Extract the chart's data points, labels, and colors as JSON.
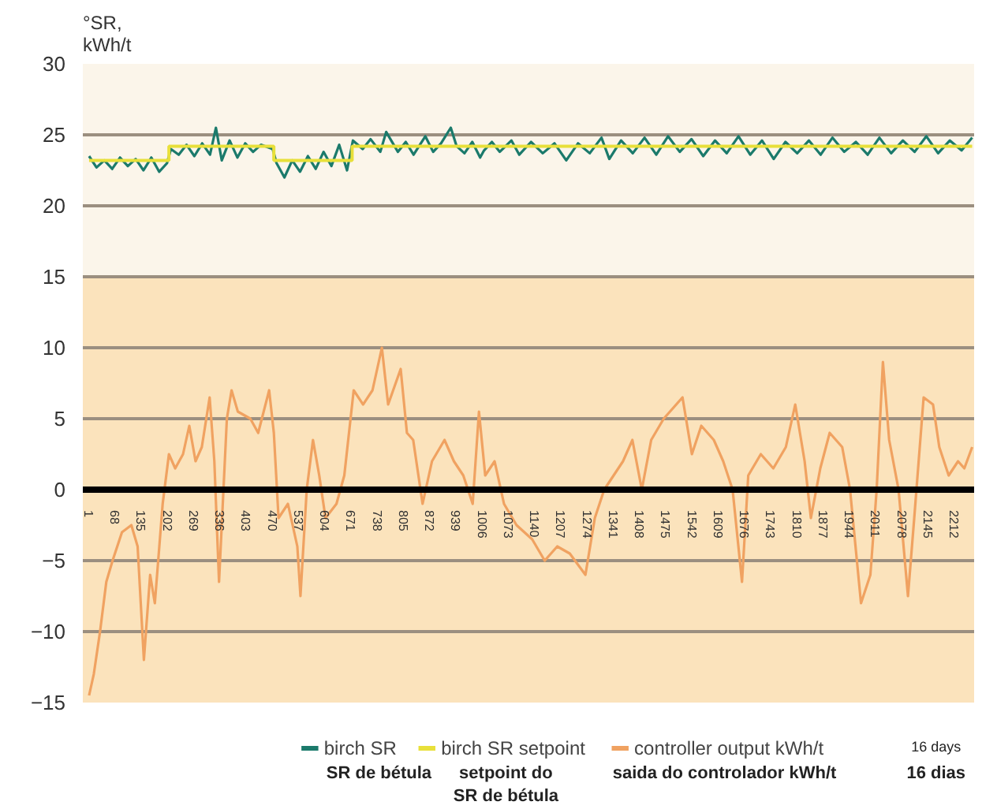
{
  "chart_data": {
    "type": "line",
    "ylabel": "°SR,\nkWh/t",
    "xlim": [
      -15,
      2262
    ],
    "ylim": [
      -15,
      30
    ],
    "xticks": [
      1,
      68,
      135,
      202,
      269,
      336,
      403,
      470,
      537,
      604,
      671,
      738,
      805,
      872,
      939,
      1006,
      1073,
      1140,
      1207,
      1274,
      1341,
      1408,
      1475,
      1542,
      1609,
      1676,
      1743,
      1810,
      1877,
      1944,
      2011,
      2078,
      2145,
      2212
    ],
    "yticks": [
      -15,
      -10,
      -5,
      0,
      5,
      10,
      15,
      20,
      25,
      30
    ],
    "grid": "y",
    "legend": "bottom",
    "line_style": "solid",
    "bands": [
      {
        "axis": "y",
        "from": 15,
        "to": 30,
        "color": "#fbf5ea"
      },
      {
        "axis": "y",
        "from": -15,
        "to": 15,
        "color": "#fbe3bc"
      }
    ],
    "series": [
      {
        "name": "birch SR",
        "color": "#1b7a6b",
        "x": [
          1,
          20,
          40,
          60,
          80,
          100,
          120,
          140,
          160,
          180,
          200,
          210,
          230,
          250,
          270,
          290,
          310,
          325,
          340,
          360,
          380,
          400,
          420,
          440,
          470,
          480,
          500,
          520,
          540,
          560,
          580,
          600,
          620,
          640,
          660,
          675,
          700,
          720,
          745,
          760,
          790,
          810,
          830,
          860,
          880,
          900,
          925,
          940,
          960,
          980,
          1000,
          1010,
          1030,
          1050,
          1080,
          1100,
          1130,
          1160,
          1190,
          1220,
          1250,
          1280,
          1310,
          1330,
          1360,
          1390,
          1420,
          1450,
          1480,
          1510,
          1540,
          1570,
          1600,
          1630,
          1660,
          1690,
          1720,
          1750,
          1780,
          1810,
          1840,
          1870,
          1900,
          1930,
          1960,
          1990,
          2020,
          2050,
          2080,
          2110,
          2140,
          2170,
          2200,
          2230,
          2257
        ],
        "values": [
          23.5,
          22.7,
          23.2,
          22.6,
          23.4,
          22.8,
          23.3,
          22.5,
          23.4,
          22.4,
          23.0,
          24.0,
          23.6,
          24.3,
          23.5,
          24.4,
          23.6,
          25.5,
          23.2,
          24.6,
          23.4,
          24.4,
          23.8,
          24.3,
          24.0,
          23.0,
          22.0,
          23.2,
          22.4,
          23.5,
          22.6,
          23.8,
          22.8,
          24.3,
          22.5,
          24.6,
          24.0,
          24.7,
          23.8,
          25.2,
          23.8,
          24.5,
          23.6,
          24.9,
          23.8,
          24.4,
          25.5,
          24.2,
          23.7,
          24.5,
          23.4,
          23.9,
          24.5,
          23.8,
          24.6,
          23.6,
          24.5,
          23.7,
          24.4,
          23.2,
          24.4,
          23.7,
          24.8,
          23.3,
          24.6,
          23.7,
          24.8,
          23.6,
          24.9,
          23.8,
          24.7,
          23.5,
          24.6,
          23.7,
          24.9,
          23.6,
          24.6,
          23.3,
          24.5,
          23.7,
          24.6,
          23.6,
          24.8,
          23.8,
          24.5,
          23.6,
          24.8,
          23.7,
          24.6,
          23.8,
          24.9,
          23.7,
          24.6,
          23.9,
          24.8
        ]
      },
      {
        "name": "birch SR setpoint",
        "color": "#e8e03a",
        "type": "step",
        "x": [
          1,
          205,
          473,
          673,
          2257
        ],
        "values": [
          23.2,
          24.2,
          23.2,
          24.2,
          24.2
        ]
      },
      {
        "name": "controller output kWh/t",
        "color": "#f0a261",
        "x": [
          1,
          13,
          29,
          45,
          61,
          85,
          109,
          125,
          141,
          157,
          169,
          189,
          205,
          221,
          241,
          257,
          273,
          289,
          309,
          321,
          333,
          353,
          365,
          381,
          413,
          433,
          461,
          473,
          485,
          509,
          533,
          541,
          557,
          573,
          589,
          605,
          633,
          653,
          677,
          701,
          725,
          749,
          765,
          797,
          813,
          829,
          853,
          877,
          909,
          933,
          957,
          981,
          997,
          1013,
          1037,
          1061,
          1093,
          1133,
          1165,
          1197,
          1229,
          1269,
          1293,
          1317,
          1341,
          1365,
          1389,
          1413,
          1437,
          1469,
          1517,
          1541,
          1565,
          1597,
          1621,
          1645,
          1669,
          1685,
          1717,
          1749,
          1781,
          1805,
          1829,
          1845,
          1869,
          1893,
          1925,
          1945,
          1973,
          1997,
          2013,
          2029,
          2045,
          2069,
          2093,
          2109,
          2133,
          2157,
          2173,
          2197,
          2221,
          2237,
          2257
        ],
        "values": [
          -14.5,
          -13,
          -10,
          -6.5,
          -5,
          -3,
          -2.5,
          -4,
          -12,
          -6,
          -8,
          -1,
          2.5,
          1.5,
          2.5,
          4.5,
          2,
          3,
          6.5,
          2,
          -6.5,
          5,
          7,
          5.5,
          5,
          4,
          7,
          4,
          -2,
          -1,
          -4,
          -7.5,
          0,
          3.5,
          1,
          -2,
          -1,
          1,
          7,
          6,
          7,
          10,
          6,
          8.5,
          4,
          3.5,
          -1,
          2,
          3.5,
          2,
          1,
          -1,
          5.5,
          1,
          2,
          -1,
          -2.5,
          -3.5,
          -5,
          -4,
          -4.5,
          -6,
          -2,
          0,
          1,
          2,
          3.5,
          0,
          3.5,
          5,
          6.5,
          2.5,
          4.5,
          3.5,
          2,
          0,
          -6.5,
          1,
          2.5,
          1.5,
          3,
          6,
          2,
          -2,
          1.5,
          4,
          3,
          0,
          -8,
          -6,
          0,
          9,
          3.5,
          0,
          -7.5,
          -2,
          6.5,
          6,
          3,
          1,
          2,
          1.5,
          3
        ]
      }
    ],
    "annotations": [
      "16 days",
      "SR de bétula",
      "setpoint do\nSR de bétula",
      "saida do controlador kWh/t",
      "16 dias"
    ]
  }
}
